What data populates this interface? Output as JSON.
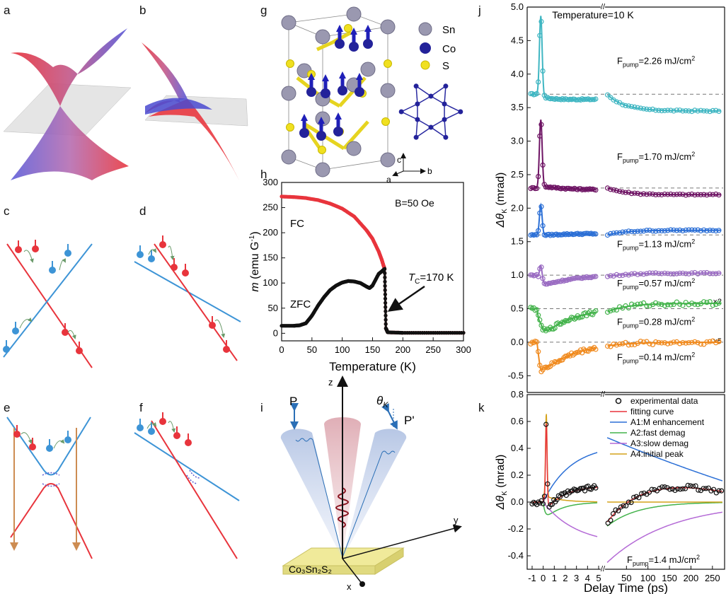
{
  "panel_letters": [
    "a",
    "b",
    "c",
    "d",
    "e",
    "f",
    "g",
    "h",
    "i",
    "j",
    "k"
  ],
  "structure": {
    "legend": [
      {
        "label": "Sn",
        "color": "#9a98b0"
      },
      {
        "label": "Co",
        "color": "#23229a"
      },
      {
        "label": "S",
        "color": "#f0e020"
      }
    ],
    "axes": [
      "c",
      "a",
      "b"
    ]
  },
  "colors": {
    "red": "#e8343c",
    "blue": "#3d94d6",
    "orange_arrow": "#cd8c52",
    "cyan": "#3fb6c2",
    "purple": "#6e1464",
    "blue2": "#2b6fd6",
    "lavender": "#9a6cc2",
    "green": "#44b34c",
    "orange": "#f08a1e"
  },
  "setup": {
    "p_label": "P",
    "p_prime_label": "P'",
    "theta_main": "θ",
    "theta_sub": "K",
    "axis_z": "z",
    "axis_y": "y",
    "axis_x": "x",
    "sample": "Co₃Sn₂S₂"
  },
  "chart_data": [
    {
      "panel": "h",
      "type": "line",
      "annotation": "B=50 Oe",
      "xlabel": "Temperature (K)",
      "ylabel_main": "m",
      "ylabel_units": "(emu G",
      "ylabel_exp": "-1",
      "ylabel_close": ")",
      "xlim": [
        0,
        300
      ],
      "ylim": [
        -15,
        300
      ],
      "xticks": [
        0,
        50,
        100,
        150,
        200,
        250,
        300
      ],
      "yticks": [
        0,
        50,
        100,
        150,
        200,
        250,
        300
      ],
      "labels": {
        "fc": "FC",
        "zfc": "ZFC",
        "tc_main": "T",
        "tc_sub": "C",
        "tc_val": "=170 K"
      },
      "series": [
        {
          "name": "FC",
          "color": "#e8343c",
          "x": [
            0,
            20,
            40,
            60,
            80,
            100,
            120,
            140,
            150,
            160,
            165,
            168,
            170,
            172,
            175,
            200,
            250,
            300
          ],
          "y": [
            272,
            271,
            269,
            265,
            258,
            248,
            232,
            205,
            188,
            163,
            147,
            135,
            128,
            10,
            2,
            1,
            1,
            1
          ]
        },
        {
          "name": "ZFC",
          "color": "#111111",
          "x": [
            0,
            20,
            30,
            40,
            50,
            60,
            70,
            80,
            90,
            100,
            110,
            120,
            130,
            140,
            145,
            150,
            160,
            168,
            170,
            172,
            175,
            200,
            250,
            300
          ],
          "y": [
            15,
            15,
            16,
            20,
            35,
            55,
            72,
            86,
            95,
            101,
            104,
            103,
            100,
            93,
            90,
            95,
            118,
            126,
            128,
            10,
            2,
            1,
            1,
            1
          ]
        }
      ]
    },
    {
      "panel": "j",
      "type": "scatter",
      "title": "Temperature=10 K",
      "ylabel_main": "Δθ",
      "ylabel_sub": "K",
      "ylabel_units": "(mrad)",
      "ylim": [
        -0.75,
        5.0
      ],
      "yticks": [
        "-0.5",
        "0.0",
        "0.5",
        "1.0",
        "1.5",
        "2.0",
        "2.5",
        "3.0",
        "3.5",
        "4.0",
        "4.5",
        "5.0"
      ],
      "multipliers": [
        "×2",
        "×5"
      ],
      "series": [
        {
          "name": "F_pump=2.26",
          "label_main": "F",
          "label_sub": "pump",
          "label_rest": "=2.26 mJ/cm",
          "label_exp": "2",
          "offset": 3.7,
          "color": "#3fb6c2",
          "peak": 1.2,
          "fast": -0.02,
          "slow": -0.25,
          "label_y": 4.15
        },
        {
          "name": "F_pump=1.70",
          "label_main": "F",
          "label_sub": "pump",
          "label_rest": "=1.70 mJ/cm",
          "label_exp": "2",
          "offset": 2.3,
          "color": "#6e1464",
          "peak": 1.0,
          "fast": 0.05,
          "slow": -0.1,
          "label_y": 2.72
        },
        {
          "name": "F_pump=1.13",
          "label_main": "F",
          "label_sub": "pump",
          "label_rest": "=1.13 mJ/cm",
          "label_exp": "2",
          "offset": 1.6,
          "color": "#2b6fd6",
          "peak": 0.45,
          "fast": -0.02,
          "slow": 0.07,
          "label_y": 1.42
        },
        {
          "name": "F_pump=0.57",
          "label_main": "F",
          "label_sub": "pump",
          "label_rest": "=0.57 mJ/cm",
          "label_exp": "2",
          "offset": 1.0,
          "color": "#9a6cc2",
          "peak": 0.25,
          "fast": -0.2,
          "slow": 0.03,
          "label_y": 0.83
        },
        {
          "name": "F_pump=0.28",
          "label_main": "F",
          "label_sub": "pump",
          "label_rest": "=0.28 mJ/cm",
          "label_exp": "2",
          "offset": 0.5,
          "color": "#44b34c",
          "peak": 0.05,
          "fast": -0.5,
          "slow": 0.08,
          "label_y": 0.26
        },
        {
          "name": "F_pump=0.14",
          "label_main": "F",
          "label_sub": "pump",
          "label_rest": "=0.14 mJ/cm",
          "label_exp": "2",
          "offset": 0.0,
          "color": "#f08a1e",
          "peak": -0.1,
          "fast": -0.55,
          "slow": 0.0,
          "label_y": -0.27
        }
      ]
    },
    {
      "panel": "k",
      "type": "line",
      "ylabel_main": "Δθ",
      "ylabel_sub": "K",
      "ylabel_units": "(mrad)",
      "xlabel": "Delay Time (ps)",
      "ylim": [
        -0.5,
        0.8
      ],
      "yticks": [
        "-0.4",
        "-0.2",
        "0.0",
        "0.2",
        "0.4",
        "0.6",
        "0.8"
      ],
      "xticks_left": [
        "-1",
        "0",
        "1",
        "2",
        "3",
        "4",
        "5"
      ],
      "xticks_right": [
        "50",
        "100",
        "150",
        "200",
        "250"
      ],
      "annotation_main": "F",
      "annotation_sub": "pump",
      "annotation_rest": "=1.4 mJ/cm",
      "annotation_exp": "2",
      "legend": [
        {
          "label": "experimental data",
          "color": "#111111",
          "marker": "circle"
        },
        {
          "label": "fitting curve",
          "color": "#e8343c"
        },
        {
          "label": "A1:M enhancement",
          "color": "#2b6fd6"
        },
        {
          "label": "A2:fast demag",
          "color": "#44b34c"
        },
        {
          "label": "A3:slow demag",
          "color": "#b46ad6"
        },
        {
          "label": "A4:initial peak",
          "color": "#d4a21a"
        }
      ]
    }
  ]
}
